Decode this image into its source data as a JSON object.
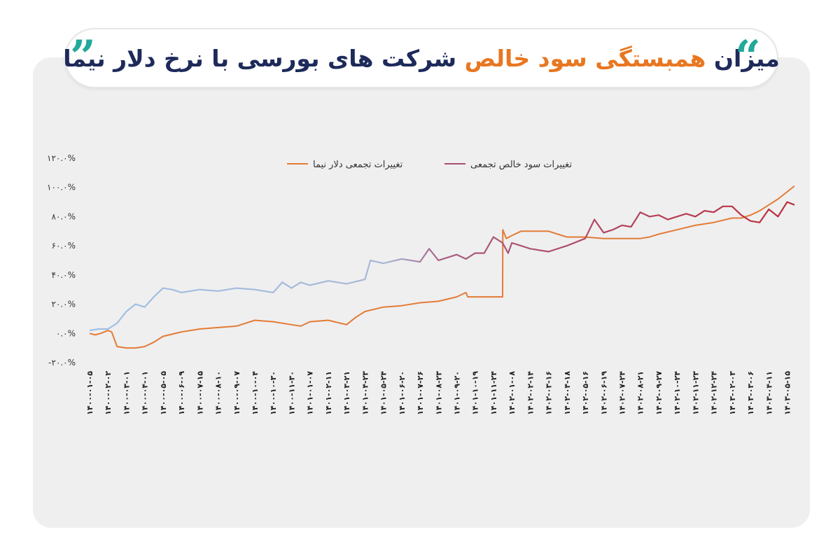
{
  "header": {
    "title_part1": "میزان",
    "title_part2": "همبستگی سود خالص",
    "title_part3": "شرکت های بورسی با نرخ دلار نیما",
    "quote_open": "”",
    "quote_close": "“",
    "accent_color": "#e87722",
    "text_color": "#1d2a5a",
    "quote_color": "#22a99a"
  },
  "chart_data": {
    "type": "line",
    "title": "میزان همبستگی سود خالص شرکت های بورسی با نرخ دلار نیما",
    "xlabel": "",
    "ylabel": "",
    "ylim": [
      -20,
      120
    ],
    "yticks": [
      -20,
      0,
      20,
      40,
      60,
      80,
      100,
      120
    ],
    "ytick_labels": [
      "-۲۰.۰%",
      "۰.۰%",
      "۲۰.۰%",
      "۴۰.۰%",
      "۶۰.۰%",
      "۸۰.۰%",
      "۱۰۰.۰%",
      "۱۲۰.۰%"
    ],
    "grid": false,
    "legend_position": "top",
    "x_ticks": [
      "۱۴۰۰-۰۱-۰۵",
      "۱۴۰۰-۰۲-۰۲",
      "۱۴۰۰-۰۳-۰۱",
      "۱۴۰۰-۰۴-۰۱",
      "۱۴۰۰-۰۵-۰۵",
      "۱۴۰۰-۰۶-۰۹",
      "۱۴۰۰-۰۷-۱۵",
      "۱۴۰۰-۰۸-۱۰",
      "۱۴۰۰-۰۹-۰۷",
      "۱۴۰۰-۱۰-۰۴",
      "۱۴۰۰-۱۰-۳۰",
      "۱۴۰۰-۱۱-۳۰",
      "۱۴۰۱-۰۱-۰۷",
      "۱۴۰۱-۰۲-۱۱",
      "۱۴۰۱-۰۳-۲۱",
      "۱۴۰۱-۰۴-۲۳",
      "۱۴۰۱-۰۵-۲۴",
      "۱۴۰۱-۰۶-۲۰",
      "۱۴۰۱-۰۷-۲۶",
      "۱۴۰۱-۰۸-۲۳",
      "۱۴۰۱-۰۹-۲۰",
      "۱۴۰۱-۱۰-۱۹",
      "۱۴۰۱-۱۱-۲۴",
      "۱۴۰۲-۰۱-۰۸",
      "۱۴۰۲-۰۲-۱۴",
      "۱۴۰۲-۰۳-۱۶",
      "۱۴۰۲-۰۴-۱۸",
      "۱۴۰۲-۰۵-۱۶",
      "۱۴۰۲-۰۶-۱۹",
      "۱۴۰۲-۰۷-۲۴",
      "۱۴۰۲-۰۸-۲۱",
      "۱۴۰۲-۰۹-۲۷",
      "۱۴۰۲-۱۰-۲۴",
      "۱۴۰۲-۱۱-۲۳",
      "۱۴۰۲-۱۲-۲۴",
      "۱۴۰۳-۰۲-۰۳",
      "۱۴۰۳-۰۳-۰۶",
      "۱۴۰۳-۰۴-۱۱",
      "۱۴۰۳-۰۵-۱۵"
    ],
    "series": [
      {
        "name": "تغییرات تجمعی دلار نیما",
        "color": "#e47b35",
        "x": [
          0,
          0.3,
          0.6,
          1.0,
          1.2,
          1.5,
          2.0,
          2.5,
          3.0,
          3.5,
          4.0,
          5.0,
          6.0,
          7.0,
          8.0,
          9.0,
          10.0,
          11.0,
          11.5,
          12.0,
          13.0,
          14.0,
          14.5,
          15.0,
          16.0,
          17.0,
          18.0,
          19.0,
          20.0,
          20.5,
          20.6,
          21.0,
          22.0,
          22.5,
          22.51,
          22.7,
          23.0,
          23.5,
          24.0,
          24.5,
          25.0,
          25.5,
          26.0,
          26.5,
          27.0,
          28.0,
          29.0,
          30.0,
          30.5,
          31.0,
          32.0,
          33.0,
          34.0,
          35.0,
          35.5,
          36.0,
          36.5,
          37.0,
          37.5,
          38.0,
          38.4
        ],
        "y": [
          0,
          -1,
          0,
          2,
          1,
          -9,
          -10,
          -10,
          -9,
          -6,
          -2,
          1,
          3,
          4,
          5,
          9,
          8,
          6,
          5,
          8,
          9,
          6,
          11,
          15,
          18,
          19,
          21,
          22,
          25,
          28,
          25,
          25,
          25,
          25,
          71,
          65,
          67,
          70,
          70,
          70,
          70,
          68,
          66,
          66,
          66,
          65,
          65,
          65,
          66,
          68,
          71,
          74,
          76,
          79,
          79,
          81,
          84,
          88,
          92,
          97,
          101
        ]
      },
      {
        "name": "تغییرات سود خالص تجمعی",
        "color": "#a85070",
        "x": [
          0,
          0.5,
          1.0,
          1.5,
          2.0,
          2.5,
          3.0,
          3.5,
          4.0,
          4.5,
          5.0,
          6.0,
          7.0,
          8.0,
          9.0,
          10.0,
          10.5,
          11.0,
          11.5,
          12.0,
          13.0,
          14.0,
          15.0,
          15.3,
          16.0,
          17.0,
          18.0,
          18.5,
          19.0,
          20.0,
          20.5,
          21.0,
          21.5,
          22.0,
          22.5,
          22.8,
          23.0,
          23.5,
          24.0,
          24.5,
          25.0,
          26.0,
          27.0,
          27.5,
          28.0,
          28.5,
          29.0,
          29.5,
          30.0,
          30.5,
          31.0,
          31.5,
          32.0,
          32.5,
          33.0,
          33.5,
          34.0,
          34.5,
          35.0,
          35.5,
          36.0,
          36.5,
          37.0,
          37.5,
          38.0,
          38.4
        ],
        "y": [
          2,
          3,
          3,
          7,
          15,
          20,
          18,
          25,
          31,
          30,
          28,
          30,
          29,
          31,
          30,
          28,
          35,
          31,
          35,
          33,
          36,
          34,
          37,
          50,
          48,
          51,
          49,
          58,
          50,
          54,
          51,
          55,
          55,
          66,
          62,
          55,
          62,
          60,
          58,
          57,
          56,
          60,
          65,
          78,
          69,
          71,
          74,
          73,
          83,
          80,
          81,
          78,
          80,
          82,
          80,
          84,
          83,
          87,
          87,
          81,
          77,
          76,
          85,
          80,
          90,
          88
        ],
        "gradient": [
          "#9fc0e4",
          "#a85e82",
          "#bb2e3a"
        ]
      }
    ]
  }
}
